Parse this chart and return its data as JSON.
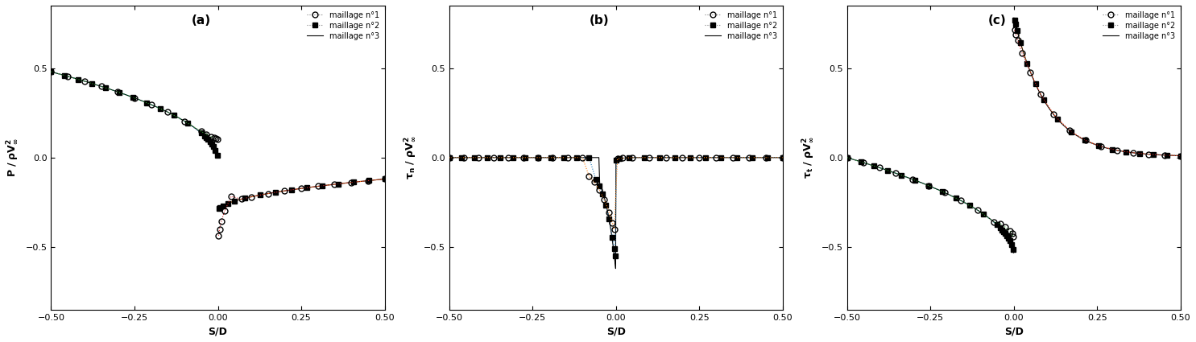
{
  "xlim": [
    -0.5,
    0.5
  ],
  "ylim": [
    -0.85,
    0.85
  ],
  "yticks": [
    -0.5,
    0.0,
    0.5
  ],
  "xticks": [
    -0.5,
    -0.25,
    0.0,
    0.25,
    0.5
  ],
  "xlabel": "S/D",
  "ylabel_a": "P / ρV∞²",
  "ylabel_b": "τ_n / ρV∞²",
  "ylabel_c": "τ_t / ρV∞²",
  "label1": "maillage n°1",
  "label2": "maillage n°2",
  "label3": "maillage n°3",
  "panel_labels": [
    "(a)",
    "(b)",
    "(c)"
  ]
}
